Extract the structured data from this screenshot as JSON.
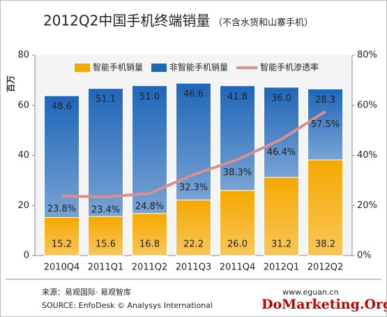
{
  "chart_data": {
    "type": "bar_line",
    "title": "2012Q2中国手机终端销量",
    "subtitle": "（不含水货和山寨手机）",
    "ylabel": "百万",
    "categories": [
      "2010Q4",
      "2011Q1",
      "2011Q2",
      "2011Q3",
      "2011Q4",
      "2012Q1",
      "2012Q2"
    ],
    "series": [
      {
        "name": "智能手机销量",
        "color": "#f5a800",
        "values": [
          15.2,
          15.6,
          16.8,
          22.2,
          26.0,
          31.2,
          38.2
        ],
        "value_labels": [
          "15.2",
          "15.6",
          "16.8",
          "22.2",
          "26.0",
          "31.2",
          "38.2"
        ]
      },
      {
        "name": "非智能手机销量",
        "color": "#1f66b8",
        "values": [
          48.6,
          51.1,
          51.0,
          46.6,
          41.8,
          36.0,
          28.3
        ],
        "value_labels": [
          "48.6",
          "51.1",
          "51.0",
          "46.6",
          "41.8",
          "36.0",
          "28.3"
        ]
      },
      {
        "name": "智能手机渗透率",
        "color": "#d9908c",
        "axis": "y2",
        "values": [
          23.8,
          23.4,
          24.8,
          32.3,
          38.3,
          46.4,
          57.5
        ],
        "value_labels": [
          "23.8%",
          "23.4%",
          "24.8%",
          "32.3%",
          "38.3%",
          "46.4%",
          "57.5%"
        ]
      }
    ],
    "ylim": [
      0,
      80
    ],
    "yticks": [
      0,
      20,
      40,
      60,
      80
    ],
    "y2lim": [
      0,
      80
    ],
    "y2ticks": [
      {
        "value": 0,
        "label": "0%"
      },
      {
        "value": 20,
        "label": "20%"
      },
      {
        "value": 40,
        "label": "40%"
      },
      {
        "value": 60,
        "label": "60%"
      },
      {
        "value": 80,
        "label": "80%"
      }
    ],
    "source_cn": "来源：易观国际· 易观智库",
    "source_en": "SOURCE: EnfoDesk © Analysys International",
    "website": "www.eguan.cn",
    "watermark": "DoMarketing.Org"
  }
}
